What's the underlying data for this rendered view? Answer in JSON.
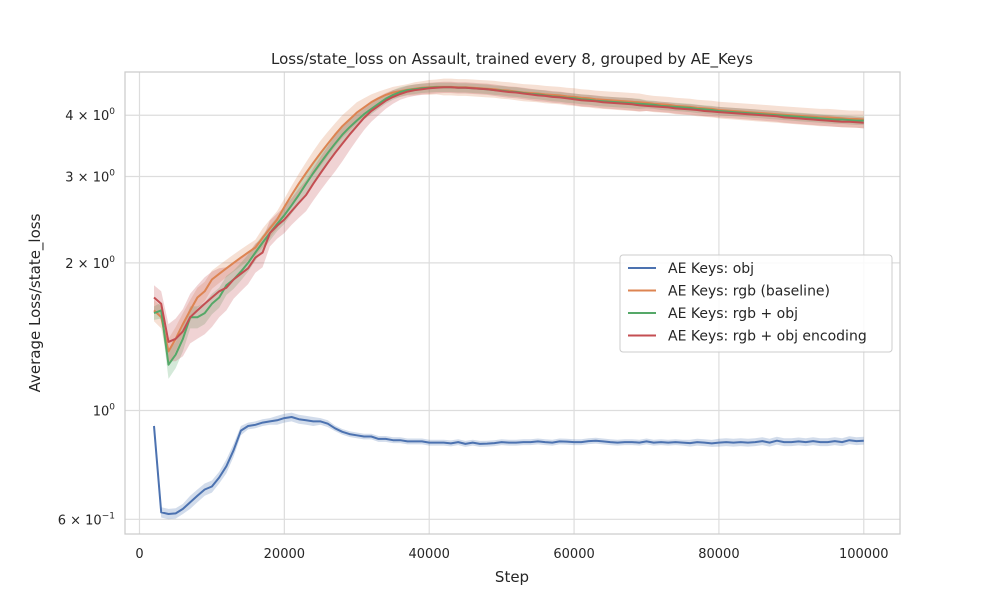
{
  "chart_data": {
    "type": "line",
    "title": "Loss/state_loss on Assault, trained every 8, grouped by AE_Keys",
    "xlabel": "Step",
    "ylabel": "Average Loss/state_loss",
    "xlim": [
      -2000,
      105000
    ],
    "ylim": [
      0.56,
      4.9
    ],
    "yscale": "log",
    "grid": true,
    "legend_position": "center-right",
    "x_ticks": [
      0,
      20000,
      40000,
      60000,
      80000,
      100000
    ],
    "x_tick_labels": [
      "0",
      "20000",
      "40000",
      "60000",
      "80000",
      "100000"
    ],
    "y_ticks": [
      {
        "value": 0.6,
        "base": "6 × 10",
        "exp": "−1"
      },
      {
        "value": 1.0,
        "base": "10",
        "exp": "0"
      },
      {
        "value": 2.0,
        "base": "2 × 10",
        "exp": "0"
      },
      {
        "value": 3.0,
        "base": "3 × 10",
        "exp": "0"
      },
      {
        "value": 4.0,
        "base": "4 × 10",
        "exp": "0"
      }
    ],
    "x": [
      2000,
      3000,
      4000,
      5000,
      6000,
      7000,
      8000,
      9000,
      10000,
      11000,
      12000,
      13000,
      14000,
      15000,
      16000,
      17000,
      18000,
      19000,
      20000,
      21000,
      22000,
      23000,
      24000,
      25000,
      26000,
      27000,
      28000,
      29000,
      30000,
      31000,
      32000,
      33000,
      34000,
      35000,
      36000,
      37000,
      38000,
      39000,
      40000,
      41000,
      42000,
      43000,
      44000,
      45000,
      46000,
      47000,
      48000,
      49000,
      50000,
      51000,
      52000,
      53000,
      54000,
      55000,
      56000,
      57000,
      58000,
      59000,
      60000,
      61000,
      62000,
      63000,
      64000,
      65000,
      66000,
      67000,
      68000,
      69000,
      70000,
      71000,
      72000,
      73000,
      74000,
      75000,
      76000,
      77000,
      78000,
      79000,
      80000,
      81000,
      82000,
      83000,
      84000,
      85000,
      86000,
      87000,
      88000,
      89000,
      90000,
      91000,
      92000,
      93000,
      94000,
      95000,
      96000,
      97000,
      98000,
      99000,
      100000
    ],
    "series": [
      {
        "name": "AE Keys: obj",
        "color": "#4c72b0",
        "values": [
          0.93,
          0.62,
          0.615,
          0.617,
          0.63,
          0.65,
          0.67,
          0.69,
          0.7,
          0.73,
          0.77,
          0.83,
          0.91,
          0.93,
          0.935,
          0.945,
          0.95,
          0.955,
          0.965,
          0.97,
          0.96,
          0.955,
          0.95,
          0.95,
          0.94,
          0.92,
          0.905,
          0.895,
          0.89,
          0.885,
          0.885,
          0.875,
          0.875,
          0.87,
          0.87,
          0.865,
          0.865,
          0.865,
          0.86,
          0.86,
          0.86,
          0.857,
          0.862,
          0.855,
          0.86,
          0.855,
          0.856,
          0.858,
          0.862,
          0.86,
          0.86,
          0.862,
          0.862,
          0.865,
          0.862,
          0.86,
          0.865,
          0.864,
          0.862,
          0.862,
          0.866,
          0.868,
          0.865,
          0.862,
          0.86,
          0.862,
          0.862,
          0.86,
          0.865,
          0.86,
          0.862,
          0.86,
          0.862,
          0.86,
          0.858,
          0.862,
          0.86,
          0.857,
          0.86,
          0.862,
          0.86,
          0.862,
          0.86,
          0.862,
          0.866,
          0.86,
          0.868,
          0.862,
          0.862,
          0.865,
          0.862,
          0.866,
          0.862,
          0.862,
          0.866,
          0.862,
          0.87,
          0.866,
          0.868
        ],
        "band": [
          0.012,
          0.015,
          0.015,
          0.015,
          0.015,
          0.02,
          0.02,
          0.02,
          0.02,
          0.02,
          0.025,
          0.025,
          0.02,
          0.015,
          0.015,
          0.015,
          0.015,
          0.02,
          0.02,
          0.02,
          0.02,
          0.02,
          0.02,
          0.015,
          0.015,
          0.012,
          0.012,
          0.012,
          0.012,
          0.012,
          0.012,
          0.012,
          0.012,
          0.012,
          0.012,
          0.012,
          0.012,
          0.012,
          0.012,
          0.012,
          0.012,
          0.012,
          0.012,
          0.012,
          0.012,
          0.012,
          0.012,
          0.012,
          0.012,
          0.012,
          0.012,
          0.012,
          0.012,
          0.012,
          0.012,
          0.012,
          0.012,
          0.012,
          0.012,
          0.012,
          0.012,
          0.012,
          0.012,
          0.012,
          0.012,
          0.012,
          0.012,
          0.012,
          0.012,
          0.012,
          0.012,
          0.012,
          0.012,
          0.012,
          0.014,
          0.014,
          0.014,
          0.014,
          0.016,
          0.016,
          0.016,
          0.016,
          0.016,
          0.016,
          0.016,
          0.016,
          0.016,
          0.016,
          0.016,
          0.016,
          0.016,
          0.016,
          0.016,
          0.016,
          0.016,
          0.016,
          0.016,
          0.016,
          0.016
        ]
      },
      {
        "name": "AE Keys: rgb (baseline)",
        "color": "#dd8452",
        "values": [
          1.6,
          1.55,
          1.32,
          1.4,
          1.5,
          1.6,
          1.7,
          1.75,
          1.85,
          1.9,
          1.95,
          2.0,
          2.05,
          2.1,
          2.15,
          2.25,
          2.35,
          2.45,
          2.6,
          2.75,
          2.9,
          3.05,
          3.2,
          3.35,
          3.5,
          3.65,
          3.8,
          3.92,
          4.05,
          4.15,
          4.25,
          4.33,
          4.4,
          4.45,
          4.48,
          4.51,
          4.53,
          4.55,
          4.56,
          4.57,
          4.57,
          4.57,
          4.56,
          4.56,
          4.55,
          4.54,
          4.53,
          4.52,
          4.5,
          4.49,
          4.47,
          4.45,
          4.44,
          4.43,
          4.41,
          4.4,
          4.39,
          4.37,
          4.36,
          4.34,
          4.33,
          4.31,
          4.3,
          4.29,
          4.28,
          4.27,
          4.26,
          4.25,
          4.24,
          4.22,
          4.21,
          4.2,
          4.18,
          4.17,
          4.16,
          4.14,
          4.13,
          4.12,
          4.1,
          4.09,
          4.08,
          4.07,
          4.06,
          4.05,
          4.04,
          4.03,
          4.02,
          4.01,
          4.0,
          3.99,
          3.98,
          3.97,
          3.96,
          3.96,
          3.95,
          3.94,
          3.93,
          3.93,
          3.92
        ],
        "band": [
          0.08,
          0.08,
          0.08,
          0.08,
          0.08,
          0.08,
          0.08,
          0.08,
          0.08,
          0.08,
          0.08,
          0.08,
          0.08,
          0.08,
          0.08,
          0.1,
          0.1,
          0.1,
          0.1,
          0.12,
          0.14,
          0.16,
          0.18,
          0.2,
          0.2,
          0.2,
          0.2,
          0.2,
          0.2,
          0.18,
          0.16,
          0.14,
          0.12,
          0.12,
          0.12,
          0.12,
          0.14,
          0.14,
          0.16,
          0.16,
          0.18,
          0.18,
          0.18,
          0.18,
          0.18,
          0.18,
          0.18,
          0.18,
          0.18,
          0.18,
          0.18,
          0.18,
          0.18,
          0.18,
          0.18,
          0.18,
          0.18,
          0.18,
          0.18,
          0.18,
          0.18,
          0.18,
          0.18,
          0.18,
          0.18,
          0.18,
          0.18,
          0.18,
          0.16,
          0.16,
          0.16,
          0.16,
          0.16,
          0.16,
          0.16,
          0.16,
          0.16,
          0.16,
          0.16,
          0.16,
          0.16,
          0.16,
          0.16,
          0.16,
          0.16,
          0.16,
          0.16,
          0.16,
          0.16,
          0.16,
          0.16,
          0.16,
          0.16,
          0.16,
          0.16,
          0.16,
          0.16,
          0.16,
          0.16
        ]
      },
      {
        "name": "AE Keys: rgb + obj",
        "color": "#55a868",
        "values": [
          1.58,
          1.6,
          1.24,
          1.3,
          1.4,
          1.55,
          1.55,
          1.58,
          1.65,
          1.7,
          1.8,
          1.85,
          1.92,
          2.0,
          2.1,
          2.2,
          2.3,
          2.4,
          2.5,
          2.62,
          2.75,
          2.9,
          3.05,
          3.2,
          3.35,
          3.5,
          3.65,
          3.78,
          3.9,
          4.02,
          4.12,
          4.22,
          4.32,
          4.4,
          4.46,
          4.5,
          4.52,
          4.54,
          4.55,
          4.56,
          4.56,
          4.56,
          4.55,
          4.55,
          4.54,
          4.53,
          4.52,
          4.5,
          4.49,
          4.47,
          4.46,
          4.44,
          4.42,
          4.41,
          4.39,
          4.37,
          4.36,
          4.34,
          4.33,
          4.31,
          4.3,
          4.28,
          4.27,
          4.26,
          4.25,
          4.24,
          4.23,
          4.22,
          4.21,
          4.2,
          4.18,
          4.17,
          4.16,
          4.15,
          4.14,
          4.12,
          4.11,
          4.1,
          4.08,
          4.07,
          4.06,
          4.05,
          4.04,
          4.03,
          4.02,
          4.01,
          4.0,
          3.99,
          3.98,
          3.97,
          3.96,
          3.95,
          3.94,
          3.93,
          3.92,
          3.92,
          3.91,
          3.9,
          3.9
        ],
        "band": [
          0.05,
          0.06,
          0.08,
          0.08,
          0.08,
          0.08,
          0.08,
          0.08,
          0.08,
          0.08,
          0.08,
          0.08,
          0.08,
          0.08,
          0.08,
          0.08,
          0.08,
          0.08,
          0.1,
          0.1,
          0.12,
          0.14,
          0.15,
          0.15,
          0.15,
          0.15,
          0.15,
          0.14,
          0.12,
          0.1,
          0.1,
          0.1,
          0.1,
          0.1,
          0.1,
          0.1,
          0.1,
          0.1,
          0.1,
          0.1,
          0.1,
          0.1,
          0.1,
          0.1,
          0.1,
          0.1,
          0.1,
          0.1,
          0.1,
          0.1,
          0.1,
          0.1,
          0.1,
          0.1,
          0.1,
          0.1,
          0.1,
          0.1,
          0.1,
          0.1,
          0.1,
          0.1,
          0.1,
          0.1,
          0.1,
          0.1,
          0.1,
          0.1,
          0.08,
          0.08,
          0.08,
          0.08,
          0.08,
          0.08,
          0.08,
          0.08,
          0.08,
          0.08,
          0.08,
          0.08,
          0.08,
          0.08,
          0.08,
          0.08,
          0.08,
          0.08,
          0.08,
          0.08,
          0.08,
          0.08,
          0.08,
          0.08,
          0.08,
          0.08,
          0.08,
          0.08,
          0.08,
          0.08,
          0.08
        ]
      },
      {
        "name": "AE Keys: rgb + obj encoding",
        "color": "#c44e52",
        "values": [
          1.7,
          1.65,
          1.38,
          1.4,
          1.45,
          1.55,
          1.6,
          1.65,
          1.7,
          1.75,
          1.78,
          1.85,
          1.9,
          1.95,
          2.05,
          2.1,
          2.3,
          2.38,
          2.45,
          2.55,
          2.65,
          2.75,
          2.9,
          3.05,
          3.2,
          3.35,
          3.5,
          3.65,
          3.8,
          3.95,
          4.08,
          4.18,
          4.28,
          4.36,
          4.42,
          4.47,
          4.5,
          4.52,
          4.54,
          4.55,
          4.56,
          4.56,
          4.55,
          4.55,
          4.54,
          4.53,
          4.52,
          4.5,
          4.48,
          4.46,
          4.45,
          4.43,
          4.41,
          4.39,
          4.38,
          4.36,
          4.35,
          4.33,
          4.31,
          4.29,
          4.28,
          4.27,
          4.25,
          4.24,
          4.23,
          4.22,
          4.21,
          4.19,
          4.18,
          4.17,
          4.16,
          4.15,
          4.13,
          4.12,
          4.11,
          4.1,
          4.08,
          4.07,
          4.06,
          4.05,
          4.04,
          4.03,
          4.02,
          4.01,
          4.0,
          3.99,
          3.98,
          3.96,
          3.95,
          3.94,
          3.93,
          3.92,
          3.91,
          3.9,
          3.89,
          3.88,
          3.88,
          3.87,
          3.86
        ],
        "band": [
          0.1,
          0.1,
          0.12,
          0.14,
          0.16,
          0.18,
          0.2,
          0.22,
          0.22,
          0.2,
          0.18,
          0.16,
          0.15,
          0.14,
          0.14,
          0.14,
          0.14,
          0.14,
          0.15,
          0.16,
          0.18,
          0.2,
          0.22,
          0.24,
          0.26,
          0.28,
          0.28,
          0.26,
          0.24,
          0.22,
          0.2,
          0.18,
          0.16,
          0.14,
          0.12,
          0.12,
          0.12,
          0.12,
          0.12,
          0.12,
          0.12,
          0.12,
          0.12,
          0.12,
          0.12,
          0.12,
          0.12,
          0.12,
          0.12,
          0.12,
          0.12,
          0.12,
          0.12,
          0.12,
          0.12,
          0.12,
          0.12,
          0.12,
          0.12,
          0.12,
          0.12,
          0.12,
          0.12,
          0.12,
          0.12,
          0.12,
          0.12,
          0.12,
          0.1,
          0.1,
          0.1,
          0.1,
          0.1,
          0.1,
          0.1,
          0.1,
          0.1,
          0.1,
          0.1,
          0.1,
          0.1,
          0.1,
          0.1,
          0.1,
          0.1,
          0.1,
          0.1,
          0.1,
          0.1,
          0.1,
          0.1,
          0.1,
          0.1,
          0.1,
          0.1,
          0.1,
          0.1,
          0.1,
          0.1
        ]
      }
    ]
  }
}
